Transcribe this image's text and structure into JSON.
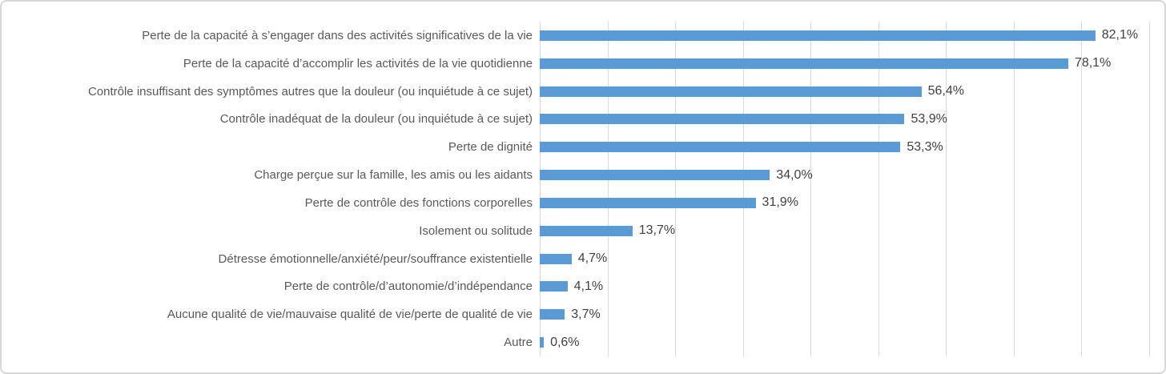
{
  "chart_data": {
    "type": "bar",
    "orientation": "horizontal",
    "title": "",
    "xlabel": "",
    "ylabel": "",
    "xlim": [
      0,
      90
    ],
    "gridline_interval": 10,
    "grid": true,
    "legend": false,
    "bar_color": "#5B9BD5",
    "gridline_color": "#D9D9D9",
    "category_text_color": "#595959",
    "value_text_color": "#404040",
    "categories": [
      "Perte de la capacité à s’engager dans des activités significatives de la vie",
      "Perte de la capacité d’accomplir les activités de la vie quotidienne",
      "Contrôle insuffisant des symptômes autres que la douleur (ou inquiétude à ce sujet)",
      "Contrôle inadéquat de la douleur (ou inquiétude à ce sujet)",
      "Perte de dignité",
      "Charge perçue sur la famille, les amis ou les aidants",
      "Perte de contrôle des fonctions corporelles",
      "Isolement ou solitude",
      "Détresse émotionnelle/anxiété/peur/souffrance existentielle",
      "Perte de contrôle/d’autonomie/d’indépendance",
      "Aucune qualité de vie/mauvaise qualité de vie/perte de qualité de vie",
      "Autre"
    ],
    "values": [
      82.1,
      78.1,
      56.4,
      53.9,
      53.3,
      34.0,
      31.9,
      13.7,
      4.7,
      4.1,
      3.7,
      0.6
    ],
    "value_labels": [
      "82,1%",
      "78,1%",
      "56,4%",
      "53,9%",
      "53,3%",
      "34,0%",
      "31,9%",
      "13,7%",
      "4,7%",
      "4,1%",
      "3,7%",
      "0,6%"
    ]
  }
}
